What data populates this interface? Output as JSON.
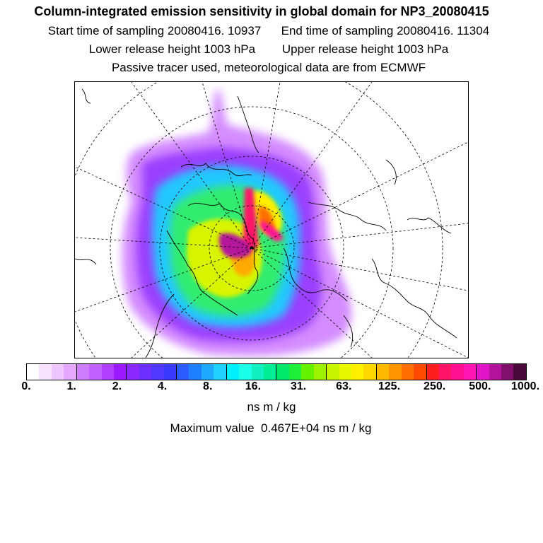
{
  "header": {
    "title": "Column-integrated emission sensitivity in global domain for NP3_20080415",
    "line1": "Start time of sampling 20080416. 10937      End time of sampling 20080416. 11304",
    "line2": "Lower release height 1003 hPa        Upper release height 1003 hPa",
    "line3": "Passive tracer used, meteorological data are from ECMWF"
  },
  "colorbar": {
    "colors": [
      "#ffffff",
      "#f7e3ff",
      "#efc6ff",
      "#e6a8ff",
      "#cf7dff",
      "#c060ff",
      "#b13fff",
      "#9b18ff",
      "#8a28ff",
      "#6c2dff",
      "#5038ff",
      "#3a3aff",
      "#2a5cff",
      "#1f80ff",
      "#1ea8ff",
      "#20d0ff",
      "#00f0ff",
      "#1affe8",
      "#10f0c0",
      "#00ec95",
      "#00e86b",
      "#1ef03a",
      "#64f200",
      "#9cf200",
      "#c8f400",
      "#e8f800",
      "#fff000",
      "#ffd800",
      "#ffba00",
      "#ff9600",
      "#ff7000",
      "#ff4a00",
      "#ff1e1e",
      "#ff1468",
      "#ff1090",
      "#ff14b4",
      "#e014c8",
      "#b4149c",
      "#80106c",
      "#4a0a3c"
    ],
    "tick_labels": [
      "0.",
      "1.",
      "2.",
      "4.",
      "8.",
      "16.",
      "31.",
      "63.",
      "125.",
      "250.",
      "500.",
      "1000."
    ],
    "unit_label": "ns m / kg",
    "max_label": "Maximum value  0.467E+04 ns m / kg"
  }
}
